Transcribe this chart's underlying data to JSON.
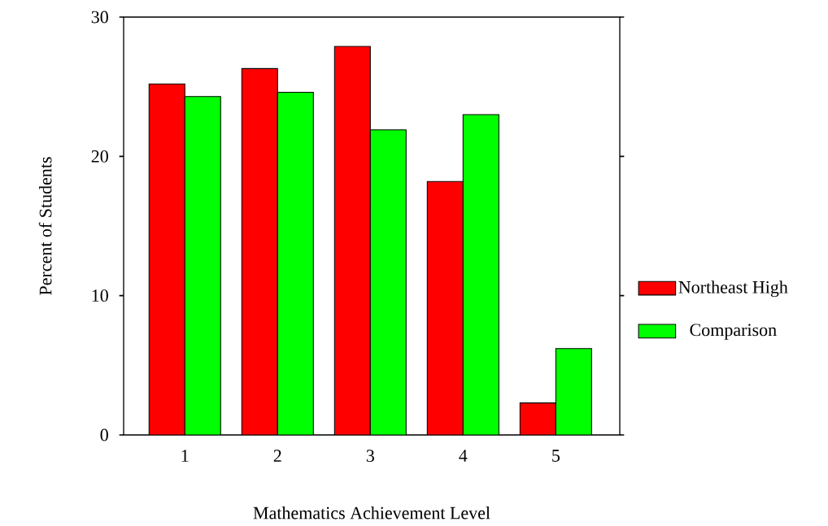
{
  "chart_data": {
    "type": "bar",
    "xlabel": "Mathematics Achievement Level",
    "ylabel": "Percent of Students",
    "categories": [
      "1",
      "2",
      "3",
      "4",
      "5"
    ],
    "series": [
      {
        "name": "Northeast High",
        "color": "#ff0000",
        "values": [
          25.2,
          26.3,
          27.9,
          18.2,
          2.3
        ]
      },
      {
        "name": "Comparison",
        "color": "#00ff00",
        "values": [
          24.3,
          24.6,
          21.9,
          23.0,
          6.2
        ]
      }
    ],
    "ylim": [
      0,
      30
    ],
    "yticks": [
      0,
      10,
      20,
      30
    ],
    "grid": false,
    "legend": "right"
  }
}
